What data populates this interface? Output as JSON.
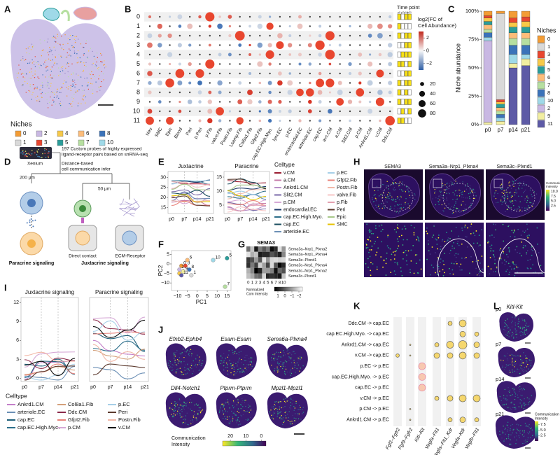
{
  "panel_labels": [
    "A",
    "B",
    "C",
    "D",
    "E",
    "F",
    "G",
    "H",
    "I",
    "J",
    "K",
    "L"
  ],
  "a": {
    "legend_title": "Niches",
    "legend": [
      {
        "label": "0",
        "color": "#f39c34"
      },
      {
        "label": "2",
        "color": "#c9b8e3"
      },
      {
        "label": "4",
        "color": "#f7c948"
      },
      {
        "label": "6",
        "color": "#fdbd7a"
      },
      {
        "label": "8",
        "color": "#3b73b9"
      },
      {
        "label": "1",
        "color": "#d9d9d9"
      },
      {
        "label": "3",
        "color": "#e8462f"
      },
      {
        "label": "5",
        "color": "#2a9d9a"
      },
      {
        "label": "7",
        "color": "#b6dfa0"
      },
      {
        "label": "10",
        "color": "#9fd9e8"
      }
    ]
  },
  "b": {
    "rows": [
      "0",
      "1",
      "2",
      "3",
      "4",
      "5",
      "6",
      "7",
      "8",
      "9",
      "10",
      "11"
    ],
    "columns": [
      "Neu",
      "SMC",
      "Epic",
      "Blood",
      "Peri",
      "p.Peri",
      "p.Fib",
      "valve.Fib",
      "Postn.Fib",
      "Lsamp.Fib",
      "Col8a1.Fib",
      "Gfpt2.Fib",
      "cap.EC.High.Myo.",
      "lym.EC",
      "p.EC",
      "endocardial.EC",
      "arteriole.EC",
      "cap.EC",
      "avc.CM",
      "a.CM",
      "Slit2.CM",
      "p.CM",
      "Ankrd1.CM",
      "v.CM",
      "Ddc.CM"
    ],
    "timepoint_title": "Time point",
    "timepoint_labels": [
      "p0",
      "p7",
      "p14",
      "p21"
    ],
    "color_title": [
      "log2(FC of",
      "Cell Abundance)"
    ],
    "color_ticks": [
      2,
      0,
      {
        "value": -2,
        "label": "−2"
      }
    ],
    "color_lim": [
      -3,
      3
    ],
    "size_ticks": [
      20,
      40,
      60,
      80
    ]
  },
  "chart_data": [
    {
      "type": "bar",
      "stacked": true,
      "ylabel": "Niche abundance",
      "legend_title": "Niches",
      "categories": [
        "p0",
        "p7",
        "p14",
        "p21"
      ],
      "ylim": [
        0,
        100
      ],
      "yticks": [
        {
          "value": 0,
          "label": "0%"
        },
        {
          "value": 25,
          "label": "25%"
        },
        {
          "value": 50,
          "label": "50%"
        },
        {
          "value": 75,
          "label": "75%"
        },
        {
          "value": 100,
          "label": "100%"
        }
      ],
      "series": [
        {
          "name": "0",
          "color": "#f39c34",
          "values": [
            4,
            2,
            6,
            5
          ]
        },
        {
          "name": "1",
          "color": "#d9d9d9",
          "values": [
            0,
            76,
            0,
            0
          ]
        },
        {
          "name": "3",
          "color": "#e8462f",
          "values": [
            2,
            2,
            4,
            4
          ]
        },
        {
          "name": "4",
          "color": "#f7c948",
          "values": [
            3,
            2,
            4,
            5
          ]
        },
        {
          "name": "5",
          "color": "#2a9d9a",
          "values": [
            3,
            3,
            5,
            5
          ]
        },
        {
          "name": "6",
          "color": "#fdbd7a",
          "values": [
            4,
            3,
            5,
            5
          ]
        },
        {
          "name": "7",
          "color": "#b6dfa0",
          "values": [
            3,
            3,
            6,
            6
          ]
        },
        {
          "name": "8",
          "color": "#3b73b9",
          "values": [
            4,
            3,
            8,
            8
          ]
        },
        {
          "name": "10",
          "color": "#9fd9e8",
          "values": [
            3,
            3,
            8,
            4
          ]
        },
        {
          "name": "2",
          "color": "#c9b8e3",
          "values": [
            72,
            0,
            0,
            0
          ]
        },
        {
          "name": "9",
          "color": "#f2eea0",
          "values": [
            2,
            3,
            4,
            6
          ]
        },
        {
          "name": "11",
          "color": "#5d5aa6",
          "values": [
            0,
            0,
            50,
            52
          ]
        }
      ]
    },
    {
      "type": "scatter",
      "xlabel": "PC1",
      "ylabel": "PC2",
      "labels": [
        "0",
        "1",
        "2",
        "3",
        "4",
        "5",
        "6",
        "7",
        "8",
        "9",
        "10",
        "11"
      ],
      "x": [
        -8,
        -3,
        -9,
        -6,
        -9,
        15,
        -5,
        14,
        -4,
        -7,
        8,
        -8
      ],
      "y": [
        -1,
        -6,
        -3,
        -1,
        -5,
        3,
        2,
        -12,
        -3,
        -4,
        2,
        -6
      ],
      "colors": [
        "#f39c34",
        "#d9d9d9",
        "#c9b8e3",
        "#e8462f",
        "#f7c948",
        "#2a9d9a",
        "#fdbd7a",
        "#b6dfa0",
        "#3b73b9",
        "#f2eea0",
        "#9fd9e8",
        "#5d5aa6"
      ],
      "xlim": [
        -13,
        17
      ],
      "ylim": [
        -14,
        7
      ],
      "xticks": [
        {
          "value": -10,
          "label": "−10"
        },
        {
          "value": -5,
          "label": "−5"
        },
        0,
        5,
        10,
        15
      ],
      "yticks": [
        5,
        0,
        {
          "value": -5,
          "label": "−5"
        },
        {
          "value": -10,
          "label": "−10"
        }
      ]
    }
  ],
  "d": {
    "xenium": "Xenium",
    "probes": [
      "197 Custom probes of highly expressed",
      "ligand-receptor pairs based on snRNA-seq"
    ],
    "infer": [
      "Distance-based",
      "cell communication infer"
    ],
    "dist1": "200 μm",
    "dist2": "50 μm",
    "paracrine": "Paracrine signaling",
    "direct": "Direct contact",
    "juxtacrine": "Juxtacrine signaling",
    "ecm": "ECM-Receptor"
  },
  "e": {
    "titles": [
      "Juxtacrine",
      "Paracrine"
    ],
    "left_yticks": [
      15,
      20,
      25,
      30
    ],
    "left_ylim": [
      12,
      33
    ],
    "right_yticks": [
      5,
      10,
      15
    ],
    "right_ylim": [
      2,
      17
    ],
    "xticks": [
      "p0",
      "p7",
      "p14",
      "p21"
    ],
    "legend_title": "Celltype",
    "legend": [
      {
        "label": "v.CM",
        "color": "#9b1c31"
      },
      {
        "label": "a.CM",
        "color": "#c57ba8"
      },
      {
        "label": "Ankrd1.CM",
        "color": "#b78fc7"
      },
      {
        "label": "Slit2.CM",
        "color": "#7a6aa8"
      },
      {
        "label": "p.CM",
        "color": "#d6a9d6"
      },
      {
        "label": "endocardial.EC",
        "color": "#1f3b6b"
      },
      {
        "label": "cap.EC.High.Myo.",
        "color": "#2c6e8a"
      },
      {
        "label": "cap.EC",
        "color": "#1a4d5e"
      },
      {
        "label": "arteriole.EC",
        "color": "#6b8fb5"
      },
      {
        "label": "p.EC",
        "color": "#a6cfe8"
      },
      {
        "label": "Gfpt2.Fib",
        "color": "#e8827a"
      },
      {
        "label": "Postn.Fib",
        "color": "#f2b8a8"
      },
      {
        "label": "valve.Fib",
        "color": "#f7c6c6"
      },
      {
        "label": "p.Fib",
        "color": "#e3a0b0"
      },
      {
        "label": "Peri",
        "color": "#5c3a2e"
      },
      {
        "label": "Epic",
        "color": "#a8c88a"
      },
      {
        "label": "SMC",
        "color": "#e6c200"
      }
    ]
  },
  "g": {
    "title": "SEMA3",
    "rows": [
      "Sema3a–Nrp1_Plxna2",
      "Sema3a–Nrp1_Plxna4",
      "Sema3e–Plxnd1",
      "Sema3c–Nrp1_Plxna4",
      "Sema3c–Nrp1_Plxna2",
      "Sema3c–Plxnd1"
    ],
    "columns": [
      "0",
      "1",
      "2",
      "3",
      "4",
      "5",
      "6",
      "7",
      "8",
      "10"
    ],
    "colorbar_title": [
      "Normalized",
      "Com Intensity"
    ],
    "colorbar_ticks": [
      1,
      0,
      {
        "value": -1,
        "label": "−1"
      },
      {
        "value": -2,
        "label": "−2"
      }
    ],
    "colorbar_lim": [
      1.5,
      -2.5
    ]
  },
  "h": {
    "titles": [
      "SEMA3",
      "Sema3a–Nrp1_Plxna4",
      "Sema3c–Plxnd1"
    ],
    "colorbar_title": [
      "Communication",
      "Intensity"
    ],
    "colorbar_ticks": [
      {
        "value": 10,
        "label": "10.0"
      },
      7.5,
      {
        "value": 5,
        "label": "5.0"
      },
      2.5
    ],
    "colorbar_lim": [
      0,
      11
    ]
  },
  "i": {
    "titles": [
      "Juxtacrine signaling",
      "Paracrine signaling"
    ],
    "left_yticks": [
      0,
      3,
      6,
      9,
      12
    ],
    "left_ylim": [
      -0.5,
      12.8
    ],
    "xticks": [
      "p0",
      "p7",
      "p14",
      "p21"
    ],
    "legend_title": "Celltype",
    "legend": [
      {
        "label": "Ankrd1.CM",
        "color": "#c47fc9"
      },
      {
        "label": "arteriole.EC",
        "color": "#6b8fb5"
      },
      {
        "label": "cap.EC",
        "color": "#1f5f7a"
      },
      {
        "label": "cap.EC.High.Myo.",
        "color": "#2c6e8a"
      },
      {
        "label": "Col8a1.Fib",
        "color": "#d4a07a"
      },
      {
        "label": "Ddc.CM",
        "color": "#8b2a4a"
      },
      {
        "label": "Gfpt2.Fib",
        "color": "#e8827a"
      },
      {
        "label": "p.CM",
        "color": "#d6a9d6"
      },
      {
        "label": "p.EC",
        "color": "#a6cfe8"
      },
      {
        "label": "Peri",
        "color": "#5c3a2e"
      },
      {
        "label": "Postn.Fib",
        "color": "#f2b8a8"
      },
      {
        "label": "v.CM",
        "color": "#111111"
      }
    ]
  },
  "j": {
    "titles": [
      "Efnb2-Ephb4",
      "Esam-Esam",
      "Sema6a-Plxna4",
      "Dll4-Notch1",
      "Ptprm-Ptprm",
      "Mpzl1-Mpzl1"
    ],
    "colorbar_title": [
      "Communication",
      "Intensity"
    ],
    "colorbar_ticks": [
      20,
      10,
      0
    ],
    "colorbar_lim": [
      25,
      -3
    ]
  },
  "k": {
    "rows": [
      "Ddc.CM -> cap.EC",
      "cap.EC.High.Myo. -> cap.EC",
      "Ankrd1.CM -> cap.EC",
      "v.CM -> cap.EC",
      "p.EC -> p.EC",
      "cap.EC.High.Myo. -> p.EC",
      "cap.EC -> p.EC",
      "v.CM -> p.EC",
      "p.CM -> p.EC",
      "Ankrd1.CM -> p.EC"
    ],
    "columns": [
      "Fgf1–Fgfr2",
      "Fgf9–Fgfr2",
      "Kitl–Kit",
      "Vegfa–Flt1",
      "Vegfa–Flt1_Kdr",
      "Vegfa–Kdr",
      "Vegfb–Flt1"
    ]
  },
  "l": {
    "title": "Kitl-Kit",
    "timepoints": [
      "p0",
      "p7",
      "p14",
      "p21"
    ],
    "colorbar_title": [
      "Communication",
      "Intensity"
    ],
    "colorbar_ticks": [
      7.5,
      {
        "value": 5,
        "label": "5.0"
      },
      2.5
    ],
    "colorbar_lim": [
      0,
      9
    ]
  }
}
